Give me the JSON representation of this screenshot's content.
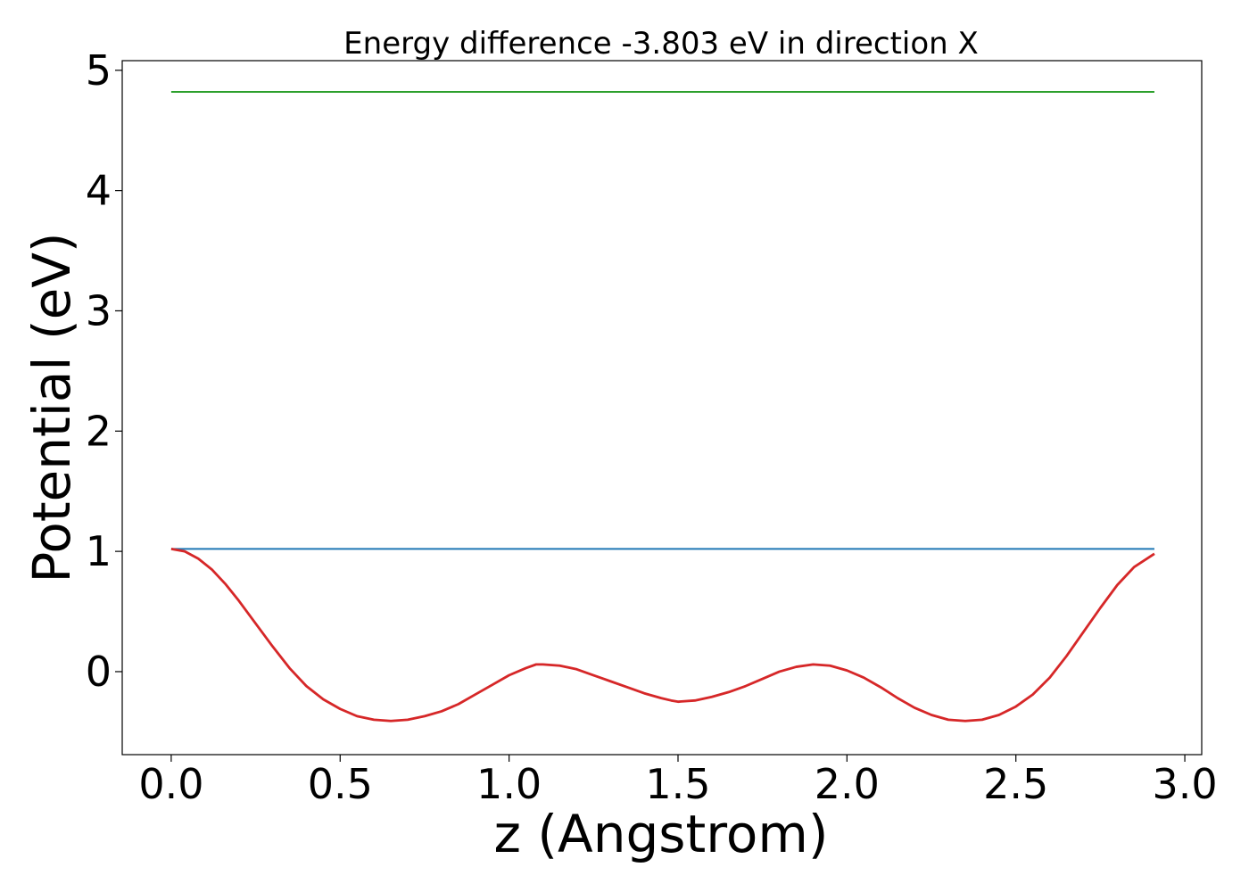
{
  "chart_data": {
    "type": "line",
    "title": "Energy difference -3.803 eV in direction X",
    "xlabel": "z (Angstrom)",
    "ylabel": "Potential (eV)",
    "xlim": [
      -0.145,
      3.05
    ],
    "ylim": [
      -0.69,
      5.08
    ],
    "grid": false,
    "legend": "none",
    "x_ticks": [
      0.0,
      0.5,
      1.0,
      1.5,
      2.0,
      2.5,
      3.0
    ],
    "x_tick_labels": [
      "0.0",
      "0.5",
      "1.0",
      "1.5",
      "2.0",
      "2.5",
      "3.0"
    ],
    "y_ticks": [
      0,
      1,
      2,
      3,
      4,
      5
    ],
    "y_tick_labels": [
      "0",
      "1",
      "2",
      "3",
      "4",
      "5"
    ],
    "series": [
      {
        "color": "#2ca02c",
        "x": [
          0.0,
          2.91
        ],
        "y": [
          4.82,
          4.82
        ]
      },
      {
        "color": "#1f77b4",
        "x": [
          0.0,
          2.91
        ],
        "y": [
          1.02,
          1.02
        ]
      },
      {
        "color": "#d62728",
        "x": [
          0.0,
          0.04,
          0.08,
          0.12,
          0.16,
          0.2,
          0.25,
          0.3,
          0.35,
          0.4,
          0.45,
          0.5,
          0.55,
          0.6,
          0.65,
          0.7,
          0.75,
          0.8,
          0.85,
          0.9,
          0.95,
          1.0,
          1.05,
          1.08,
          1.1,
          1.15,
          1.2,
          1.25,
          1.3,
          1.35,
          1.4,
          1.45,
          1.48,
          1.5,
          1.55,
          1.6,
          1.65,
          1.7,
          1.75,
          1.8,
          1.85,
          1.9,
          1.95,
          2.0,
          2.05,
          2.1,
          2.15,
          2.2,
          2.25,
          2.3,
          2.35,
          2.4,
          2.45,
          2.5,
          2.55,
          2.6,
          2.65,
          2.7,
          2.75,
          2.8,
          2.85,
          2.91
        ],
        "y": [
          1.02,
          1.0,
          0.94,
          0.85,
          0.73,
          0.59,
          0.4,
          0.21,
          0.03,
          -0.12,
          -0.23,
          -0.31,
          -0.37,
          -0.4,
          -0.41,
          -0.4,
          -0.37,
          -0.33,
          -0.27,
          -0.19,
          -0.11,
          -0.03,
          0.03,
          0.06,
          0.06,
          0.05,
          0.02,
          -0.03,
          -0.08,
          -0.13,
          -0.18,
          -0.22,
          -0.24,
          -0.25,
          -0.24,
          -0.21,
          -0.17,
          -0.12,
          -0.06,
          0.0,
          0.04,
          0.06,
          0.05,
          0.01,
          -0.05,
          -0.13,
          -0.22,
          -0.3,
          -0.36,
          -0.4,
          -0.41,
          -0.4,
          -0.36,
          -0.29,
          -0.19,
          -0.05,
          0.13,
          0.33,
          0.53,
          0.72,
          0.87,
          0.98
        ]
      }
    ]
  }
}
